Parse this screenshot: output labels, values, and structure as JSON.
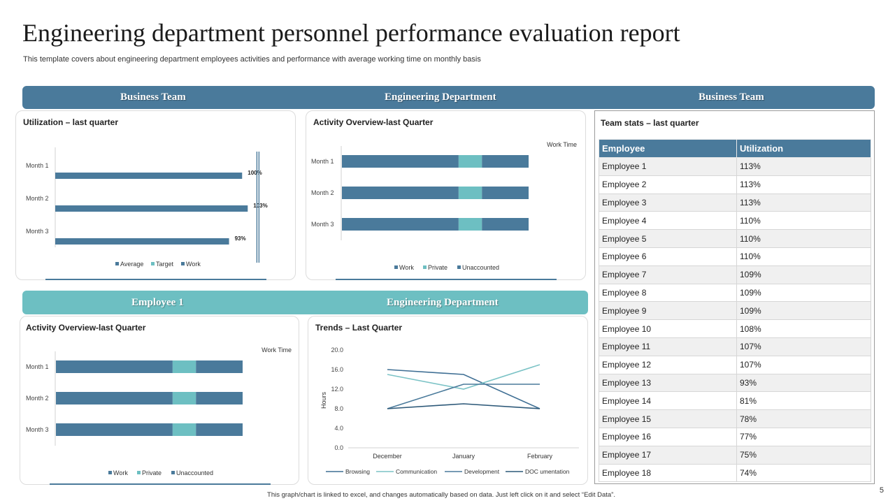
{
  "header": {
    "title": "Engineering department personnel performance evaluation report",
    "subtitle": "This template covers about engineering department employees activities and performance with average working time on monthly basis"
  },
  "colors": {
    "primary": "#4a7a9b",
    "light": "#6dbfc2",
    "band_top": "#4a7a9b",
    "band_mid": "#6dbfc2"
  },
  "bands": {
    "top": [
      "Business Team",
      "Engineering  Department",
      "Business Team"
    ],
    "mid": [
      "Employee  1",
      "Engineering  Department"
    ]
  },
  "stats": {
    "title": "Team stats – last quarter",
    "headers": [
      "Employee",
      "Utilization"
    ],
    "rows": [
      [
        "Employee 1",
        "113%"
      ],
      [
        "Employee 2",
        "113%"
      ],
      [
        "Employee 3",
        "113%"
      ],
      [
        "Employee 4",
        "110%"
      ],
      [
        "Employee 5",
        "110%"
      ],
      [
        "Employee 6",
        "110%"
      ],
      [
        "Employee 7",
        "109%"
      ],
      [
        "Employee 8",
        "109%"
      ],
      [
        "Employee 9",
        "109%"
      ],
      [
        "Employee 10",
        "108%"
      ],
      [
        "Employee 11",
        "107%"
      ],
      [
        "Employee 12",
        "107%"
      ],
      [
        "Employee 13",
        "93%"
      ],
      [
        "Employee 14",
        "81%"
      ],
      [
        "Employee 15",
        "78%"
      ],
      [
        "Employee 16",
        "77%"
      ],
      [
        "Employee 17",
        "75%"
      ],
      [
        "Employee 18",
        "74%"
      ]
    ]
  },
  "footer": {
    "note": "This graph/chart is linked to excel, and changes automatically based on data. Just left click on it and select “Edit Data”.",
    "page": "5"
  },
  "chart_data": [
    {
      "id": "utilization",
      "type": "bar",
      "title": "Utilization  – last quarter",
      "categories": [
        "Month 1",
        "Month 2",
        "Month 3"
      ],
      "series": [
        {
          "name": "Average",
          "values": [
            100,
            103,
            93
          ]
        },
        {
          "name": "Target",
          "values": [
            110,
            110,
            110
          ]
        },
        {
          "name": "Work",
          "values": [
            100,
            103,
            93
          ]
        }
      ],
      "data_labels": [
        "100%",
        "103%",
        "93%"
      ],
      "legend": [
        "Average",
        "Target",
        "Work"
      ],
      "xlim": [
        0,
        110
      ]
    },
    {
      "id": "activity1",
      "type": "bar",
      "stacked": true,
      "title": "Activity  Overview-last Quarter",
      "annotation": "Work Time",
      "categories": [
        "Month 1",
        "Month 2",
        "Month 3"
      ],
      "series": [
        {
          "name": "Work",
          "values": [
            5,
            5,
            5
          ]
        },
        {
          "name": "Private",
          "values": [
            1,
            1,
            1
          ]
        },
        {
          "name": "Unaccounted",
          "values": [
            2,
            2,
            2
          ]
        }
      ],
      "legend": [
        "Work",
        "Private",
        "Unaccounted"
      ],
      "xlim": [
        0,
        10
      ]
    },
    {
      "id": "activity2",
      "type": "bar",
      "stacked": true,
      "title": "Activity  Overview-last Quarter",
      "annotation": "Work Time",
      "categories": [
        "Month 1",
        "Month 2",
        "Month 3"
      ],
      "series": [
        {
          "name": "Work",
          "values": [
            5,
            5,
            5
          ]
        },
        {
          "name": "Private",
          "values": [
            1,
            1,
            1
          ]
        },
        {
          "name": "Unaccounted",
          "values": [
            2,
            2,
            2
          ]
        }
      ],
      "legend": [
        "Work",
        "Private",
        "Unaccounted"
      ],
      "xlim": [
        0,
        10
      ]
    },
    {
      "id": "trends",
      "type": "line",
      "title": "Trends – Last Quarter",
      "ylabel": "Hours",
      "categories": [
        "December",
        "January",
        "February"
      ],
      "y_ticks": [
        "0.0",
        "4.0",
        "8.0",
        "12.0",
        "16.0",
        "20.0"
      ],
      "ylim": [
        0,
        20
      ],
      "series": [
        {
          "name": "Browsing",
          "values": [
            16,
            15,
            8
          ]
        },
        {
          "name": "Communication",
          "values": [
            15,
            12,
            17
          ]
        },
        {
          "name": "Development",
          "values": [
            8,
            13,
            13
          ]
        },
        {
          "name": "DOC umentation",
          "values": [
            8,
            9,
            8
          ]
        }
      ]
    }
  ]
}
